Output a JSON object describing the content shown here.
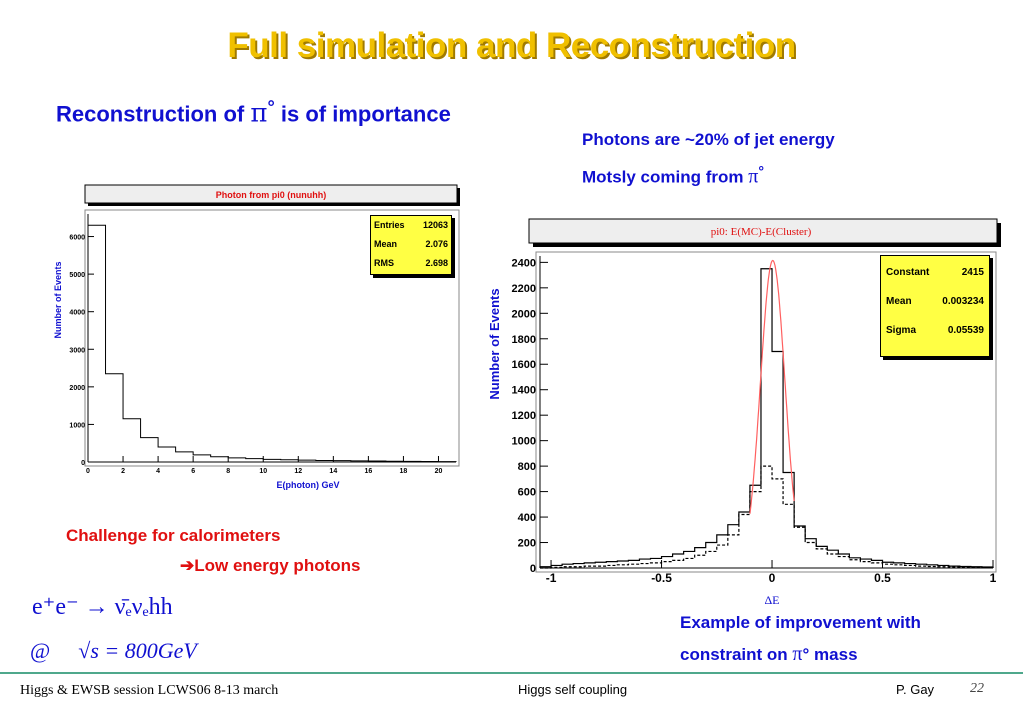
{
  "slide": {
    "title": "Full simulation and Reconstruction",
    "subtitle_prefix": "Reconstruction of ",
    "pi_symbol": "π",
    "degree": "°",
    "subtitle_suffix": " is of importance",
    "note1": "Photons are ~20% of jet energy",
    "note2_prefix": "Motsly coming from ",
    "challenge": "Challenge for calorimeters",
    "arrow": "➔",
    "low_energy": "Low energy photons",
    "improve_line1": "Example of improvement with",
    "improve_line2_prefix": "constraint on ",
    "improve_line2_suffix": " mass",
    "formula_reaction": "e⁺e⁻ → ν̄ₑνₑhh",
    "formula_energy_at": "@",
    "formula_sqrt": "√s = 800GeV",
    "footer_left": "Higgs & EWSB session LCWS06 8-13 march",
    "footer_center": "Higgs self coupling",
    "footer_author": "P.  Gay",
    "footer_page": "22"
  },
  "colors": {
    "title": "#f0c000",
    "blue_text": "#1010d0",
    "red_text": "#e01010",
    "statbox": "#ffff44",
    "fit": "#ff6060"
  },
  "chart_data": [
    {
      "type": "histogram",
      "title": "Photon from pi0 (nunuhh)",
      "xlabel": "E(photon) GeV",
      "ylabel": "Number of Events",
      "xlim": [
        0,
        21
      ],
      "ylim": [
        0,
        6600
      ],
      "xticks": [
        0,
        2,
        4,
        6,
        8,
        10,
        12,
        14,
        16,
        18,
        20
      ],
      "yticks": [
        0,
        1000,
        2000,
        3000,
        4000,
        5000,
        6000
      ],
      "stats": [
        [
          "Entries",
          "12063"
        ],
        [
          "Mean",
          "2.076"
        ],
        [
          "RMS",
          "2.698"
        ]
      ],
      "bin_edges": [
        0,
        1,
        2,
        3,
        4,
        5,
        6,
        7,
        8,
        9,
        10,
        11,
        12,
        13,
        14,
        15,
        16,
        17,
        18,
        19,
        20,
        21
      ],
      "counts": [
        6300,
        2350,
        1150,
        650,
        400,
        270,
        190,
        140,
        110,
        90,
        70,
        60,
        50,
        40,
        35,
        30,
        25,
        20,
        15,
        12,
        10
      ]
    },
    {
      "type": "histogram",
      "title": "pi0: E(MC)-E(Cluster)",
      "xlabel": "ΔE",
      "ylabel": "Number of Events",
      "xlim": [
        -1.05,
        1.0
      ],
      "ylim": [
        0,
        2450
      ],
      "xticks": [
        -1,
        -0.5,
        0,
        0.5,
        1
      ],
      "xtick_labels": [
        "-1",
        "-0.5",
        "0",
        "0.5",
        "1"
      ],
      "yticks": [
        0,
        200,
        400,
        600,
        800,
        1000,
        1200,
        1400,
        1600,
        1800,
        2000,
        2200,
        2400
      ],
      "stats": [
        [
          "Constant",
          "2415"
        ],
        [
          "Mean",
          "0.003234"
        ],
        [
          "Sigma",
          "0.05539"
        ]
      ],
      "bin_edges": [
        -1.05,
        -1.0,
        -0.95,
        -0.9,
        -0.85,
        -0.8,
        -0.75,
        -0.7,
        -0.65,
        -0.6,
        -0.55,
        -0.5,
        -0.45,
        -0.4,
        -0.35,
        -0.3,
        -0.25,
        -0.2,
        -0.15,
        -0.1,
        -0.05,
        0,
        0.05,
        0.1,
        0.15,
        0.2,
        0.25,
        0.3,
        0.35,
        0.4,
        0.45,
        0.5,
        0.55,
        0.6,
        0.65,
        0.7,
        0.75,
        0.8,
        0.85,
        0.9,
        0.95,
        1.0
      ],
      "series": [
        {
          "name": "",
          "style": "solid",
          "counts": [
            10,
            20,
            30,
            35,
            40,
            45,
            50,
            55,
            60,
            70,
            75,
            90,
            110,
            130,
            160,
            200,
            260,
            340,
            440,
            650,
            2350,
            1700,
            750,
            330,
            230,
            170,
            140,
            110,
            80,
            70,
            60,
            45,
            40,
            35,
            30,
            25,
            20,
            15,
            12,
            10,
            8
          ]
        },
        {
          "name": "",
          "style": "dashed",
          "counts": [
            0,
            5,
            10,
            10,
            15,
            15,
            20,
            25,
            30,
            35,
            40,
            50,
            60,
            75,
            100,
            130,
            180,
            260,
            420,
            600,
            800,
            700,
            500,
            320,
            200,
            150,
            110,
            90,
            65,
            50,
            40,
            30,
            25,
            20,
            15,
            12,
            10,
            8,
            5,
            5,
            3
          ]
        }
      ],
      "fit": {
        "type": "gaussian",
        "constant": 2415,
        "mean": 0.003234,
        "sigma": 0.05539,
        "range": [
          -0.1,
          0.1
        ]
      }
    }
  ]
}
